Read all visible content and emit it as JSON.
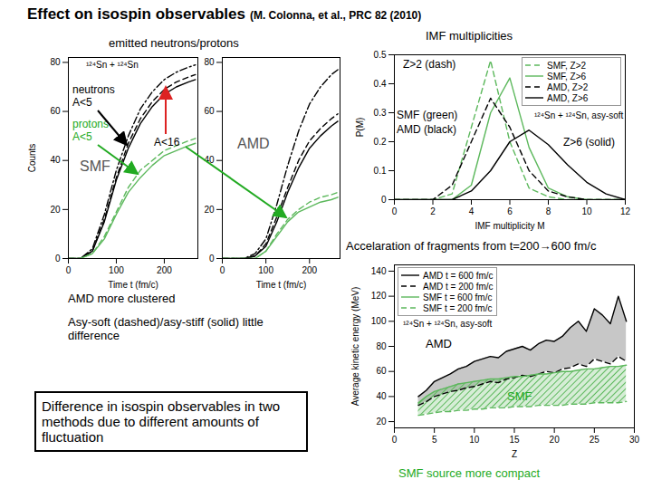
{
  "slide": {
    "title": "Effect on isospin observables",
    "citation": "(M. Colonna, et al., PRC 82 (2010)",
    "labels": [
      "emitted neutrons/protons"
    ],
    "notes": [
      "AMD more clustered",
      "Asy-soft (dashed)/asy-stiff (solid) little difference"
    ],
    "box": "Difference in isospin observables in two methods due to different amounts of fluctuation"
  },
  "chart_data": [
    {
      "type": "line",
      "title": "SMF",
      "subtitle": "¹²⁴Sn + ¹²⁴Sn",
      "x_label": "Time t (fm/c)",
      "y_label": "Counts",
      "x": [
        0,
        25,
        50,
        75,
        100,
        125,
        150,
        175,
        200,
        225,
        250,
        265
      ],
      "xlim": [
        0,
        270
      ],
      "xticks": [
        0,
        100,
        200
      ],
      "ylim": [
        0,
        82
      ],
      "yticks": [
        0,
        20,
        40,
        60,
        80
      ],
      "series": [
        {
          "color": "#000000",
          "line_style": "dashdot",
          "values": [
            0,
            0,
            4,
            18,
            36,
            50,
            61,
            68,
            73,
            76,
            78,
            79
          ]
        },
        {
          "color": "#000000",
          "line_style": "solid",
          "values": [
            0,
            0,
            3,
            15,
            32,
            45,
            55,
            62,
            67,
            70,
            72,
            73
          ]
        },
        {
          "color": "#000000",
          "line_style": "dashed",
          "values": [
            0,
            0,
            3,
            16,
            33,
            47,
            57,
            64,
            69,
            72,
            74,
            75
          ]
        },
        {
          "color": "#5cb85c",
          "line_style": "solid",
          "values": [
            0,
            0,
            2,
            8,
            18,
            27,
            33,
            38,
            42,
            44,
            46,
            47
          ]
        },
        {
          "color": "#5cb85c",
          "line_style": "dashed",
          "values": [
            0,
            0,
            2,
            9,
            19,
            29,
            36,
            40,
            44,
            46,
            48,
            49
          ]
        }
      ],
      "annotations": [
        {
          "text": "A<16"
        },
        {
          "text": "neutrons A<5"
        },
        {
          "text": "protons A<5",
          "color": "#22aa22"
        }
      ]
    },
    {
      "type": "line",
      "title": "AMD",
      "x_label": "Time t (fm/c)",
      "x": [
        0,
        25,
        50,
        75,
        100,
        125,
        150,
        175,
        200,
        225,
        250,
        265
      ],
      "xlim": [
        0,
        270
      ],
      "xticks": [
        0,
        100,
        200
      ],
      "ylim": [
        0,
        82
      ],
      "yticks": [
        0,
        20,
        40,
        60,
        80
      ],
      "series": [
        {
          "color": "#000000",
          "line_style": "dashdot",
          "values": [
            0,
            0,
            0,
            2,
            8,
            22,
            38,
            52,
            63,
            70,
            75,
            77
          ]
        },
        {
          "color": "#000000",
          "line_style": "solid",
          "values": [
            0,
            0,
            0,
            1,
            5,
            15,
            27,
            37,
            45,
            50,
            54,
            56
          ]
        },
        {
          "color": "#000000",
          "line_style": "dashed",
          "values": [
            0,
            0,
            0,
            1,
            6,
            17,
            29,
            40,
            48,
            53,
            57,
            59
          ]
        },
        {
          "color": "#5cb85c",
          "line_style": "solid",
          "values": [
            0,
            0,
            0,
            0,
            3,
            9,
            15,
            19,
            21,
            23,
            24,
            25
          ]
        },
        {
          "color": "#5cb85c",
          "line_style": "dashed",
          "values": [
            0,
            0,
            0,
            0,
            3,
            10,
            16,
            20,
            23,
            25,
            26,
            27
          ]
        }
      ]
    },
    {
      "type": "line",
      "title": "IMF multiplicities",
      "subtitle": "¹²⁴Sn + ¹²⁴Sn, asy-soft",
      "x_label": "IMF multiplicity M",
      "y_label": "P(M)",
      "x": [
        0,
        1,
        2,
        3,
        4,
        5,
        6,
        7,
        8,
        9,
        10,
        11,
        12
      ],
      "xlim": [
        0,
        12
      ],
      "xticks": [
        0,
        2,
        4,
        6,
        8,
        10,
        12
      ],
      "ylim": [
        0,
        0.5
      ],
      "yticks": [
        0,
        0.1,
        0.2,
        0.3,
        0.4,
        0.5
      ],
      "legend": "top-right",
      "series": [
        {
          "name": "SMF, Z>2",
          "color": "#5cb85c",
          "line_style": "dashed",
          "values": [
            0,
            0,
            0,
            0.02,
            0.25,
            0.48,
            0.2,
            0.04,
            0.01,
            0,
            0,
            0,
            0
          ]
        },
        {
          "name": "SMF, Z>6",
          "color": "#5cb85c",
          "line_style": "solid",
          "values": [
            0,
            0,
            0,
            0,
            0.05,
            0.3,
            0.42,
            0.18,
            0.04,
            0.01,
            0,
            0,
            0
          ]
        },
        {
          "name": "AMD, Z>2",
          "color": "#000000",
          "line_style": "dashed",
          "values": [
            0,
            0,
            0,
            0.05,
            0.2,
            0.35,
            0.25,
            0.1,
            0.03,
            0.01,
            0,
            0,
            0
          ]
        },
        {
          "name": "AMD, Z>6",
          "color": "#000000",
          "line_style": "solid",
          "values": [
            0,
            0,
            0,
            0,
            0.03,
            0.1,
            0.2,
            0.24,
            0.19,
            0.12,
            0.06,
            0.02,
            0
          ]
        }
      ],
      "annotations": [
        {
          "text": "Z>2 (dash)"
        },
        {
          "text": "SMF (green)"
        },
        {
          "text": "AMD (black)"
        },
        {
          "text": "Z>6 (solid)"
        }
      ]
    },
    {
      "type": "area",
      "title": "Accelaration of fragments from t=200→600 fm/c",
      "subtitle": "¹²⁴Sn + ¹²⁴Sn, asy-soft",
      "x_label": "Z",
      "y_label": "Average kinetic energy (MeV)",
      "x": [
        3,
        4,
        5,
        6,
        7,
        8,
        9,
        10,
        11,
        12,
        13,
        14,
        15,
        16,
        17,
        18,
        19,
        20,
        21,
        22,
        23,
        24,
        25,
        26,
        27,
        28,
        29
      ],
      "xlim": [
        0,
        30
      ],
      "xticks": [
        0,
        5,
        10,
        15,
        20,
        25,
        30
      ],
      "ylim": [
        15,
        145
      ],
      "yticks": [
        20,
        40,
        60,
        80,
        100,
        120,
        140
      ],
      "legend": "top-left",
      "series": [
        {
          "name": "AMD t = 600 fm/c",
          "color": "#000000",
          "line_style": "solid",
          "values": [
            40,
            45,
            52,
            55,
            58,
            62,
            64,
            68,
            70,
            72,
            71,
            76,
            78,
            80,
            77,
            82,
            85,
            84,
            88,
            95,
            100,
            92,
            110,
            105,
            98,
            120,
            100
          ]
        },
        {
          "name": "AMD t = 200 fm/c",
          "color": "#000000",
          "line_style": "dashed",
          "values": [
            33,
            36,
            40,
            42,
            44,
            45,
            47,
            48,
            50,
            52,
            51,
            54,
            55,
            57,
            56,
            58,
            60,
            59,
            62,
            63,
            66,
            64,
            70,
            68,
            66,
            72,
            68
          ]
        },
        {
          "name": "SMF t = 600 fm/c",
          "color": "#5cb85c",
          "line_style": "solid",
          "values": [
            35,
            40,
            44,
            46,
            48,
            50,
            51,
            52,
            53,
            54,
            54,
            55,
            56,
            56,
            57,
            58,
            58,
            59,
            60,
            60,
            61,
            62,
            62,
            63,
            64,
            64,
            65
          ]
        },
        {
          "name": "SMF t = 200 fm/c",
          "color": "#5cb85c",
          "line_style": "dashed",
          "values": [
            25,
            26,
            27,
            28,
            28,
            29,
            29,
            30,
            30,
            31,
            31,
            31,
            32,
            32,
            32,
            33,
            33,
            33,
            33,
            34,
            34,
            34,
            35,
            35,
            35,
            35,
            36
          ]
        }
      ],
      "annotations": [
        {
          "text": "AMD"
        },
        {
          "text": "SMF",
          "color": "#22aa22"
        },
        {
          "text": "SMF source more compact",
          "color": "#22aa22"
        }
      ]
    }
  ]
}
